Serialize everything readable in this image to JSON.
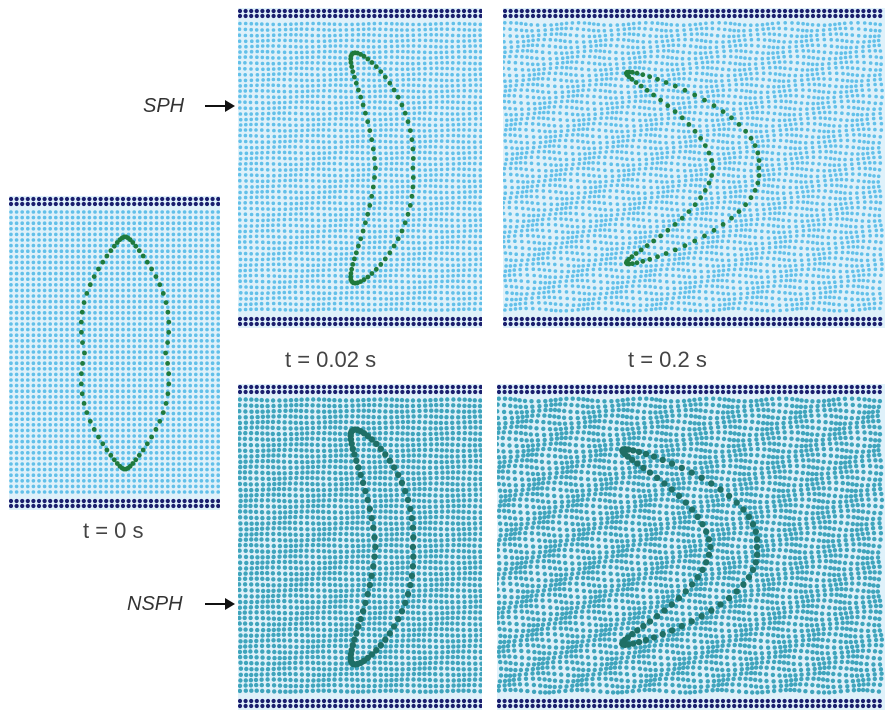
{
  "labels": {
    "t0": "t = 0 s",
    "t002": "t = 0.02 s",
    "t02": "t = 0.2 s"
  },
  "methods": {
    "sph": "SPH",
    "nsph": "NSPH"
  },
  "colors": {
    "fluid_sph": "#5bbde8",
    "fluid_nsph": "#2e9bb5",
    "boundary": "#1b1f6e",
    "droplet_sph": "#1f7a3c",
    "droplet_nsph": "#1f6f66"
  }
}
